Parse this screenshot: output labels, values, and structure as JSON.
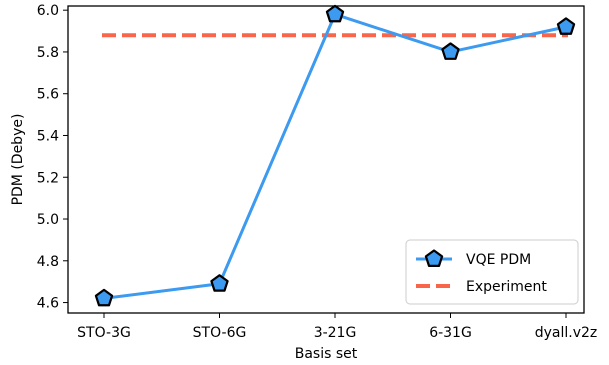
{
  "chart_data": {
    "type": "line",
    "xlabel": "Basis set",
    "ylabel": "PDM (Debye)",
    "categories": [
      "STO-3G",
      "STO-6G",
      "3-21G",
      "6-31G",
      "dyall.v2z"
    ],
    "ylim": [
      4.55,
      6.02
    ],
    "yticks": [
      "4.6",
      "4.8",
      "5.0",
      "5.2",
      "5.4",
      "5.6",
      "5.8",
      "6.0"
    ],
    "grid": false,
    "legend_position": "lower-right",
    "series": [
      {
        "name": "VQE PDM",
        "values": [
          4.62,
          4.69,
          5.98,
          5.8,
          5.92
        ],
        "color": "#3c9af0",
        "marker": "pentagon",
        "marker_edge": "#000000"
      }
    ],
    "reference_line": {
      "name": "Experiment",
      "value": 5.88,
      "color": "#f8654a",
      "style": "dashed"
    }
  }
}
